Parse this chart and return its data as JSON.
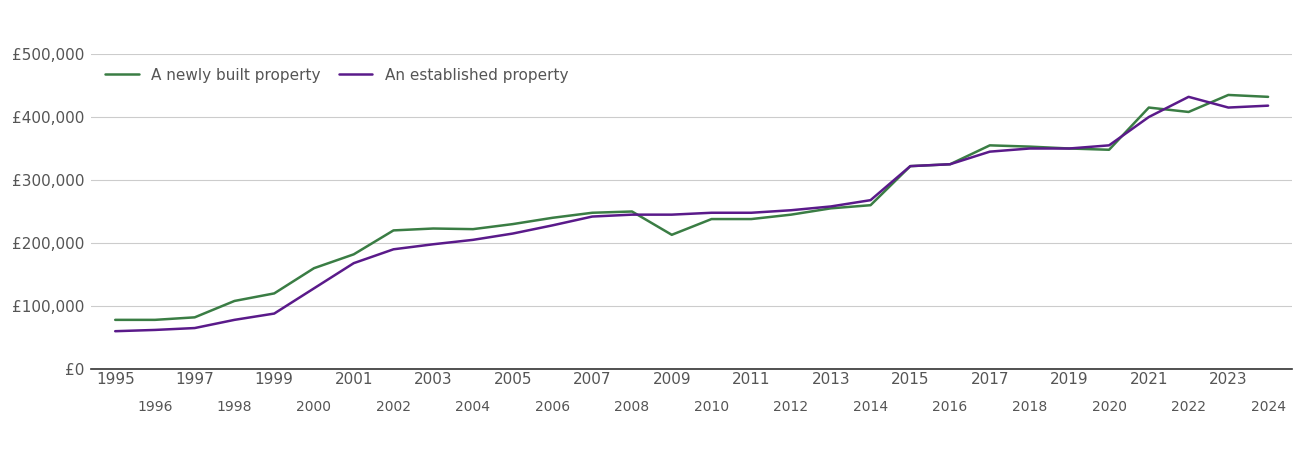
{
  "newly_built": {
    "years": [
      1995,
      1996,
      1997,
      1998,
      1999,
      2000,
      2001,
      2002,
      2003,
      2004,
      2005,
      2006,
      2007,
      2008,
      2009,
      2010,
      2011,
      2012,
      2013,
      2014,
      2015,
      2016,
      2017,
      2018,
      2019,
      2020,
      2021,
      2022,
      2023,
      2024
    ],
    "values": [
      78000,
      78000,
      82000,
      108000,
      120000,
      160000,
      182000,
      220000,
      223000,
      222000,
      230000,
      240000,
      248000,
      250000,
      213000,
      238000,
      238000,
      245000,
      255000,
      260000,
      322000,
      325000,
      355000,
      353000,
      350000,
      348000,
      415000,
      408000,
      435000,
      432000
    ]
  },
  "established": {
    "years": [
      1995,
      1996,
      1997,
      1998,
      1999,
      2000,
      2001,
      2002,
      2003,
      2004,
      2005,
      2006,
      2007,
      2008,
      2009,
      2010,
      2011,
      2012,
      2013,
      2014,
      2015,
      2016,
      2017,
      2018,
      2019,
      2020,
      2021,
      2022,
      2023,
      2024
    ],
    "values": [
      60000,
      62000,
      65000,
      78000,
      88000,
      128000,
      168000,
      190000,
      198000,
      205000,
      215000,
      228000,
      242000,
      245000,
      245000,
      248000,
      248000,
      252000,
      258000,
      268000,
      322000,
      325000,
      345000,
      350000,
      350000,
      355000,
      400000,
      432000,
      415000,
      418000
    ]
  },
  "newly_built_color": "#3a7d44",
  "established_color": "#5a1a8a",
  "background_color": "#ffffff",
  "legend_labels": [
    "A newly built property",
    "An established property"
  ],
  "ylim": [
    0,
    500000
  ],
  "yticks": [
    0,
    100000,
    200000,
    300000,
    400000,
    500000
  ],
  "ytick_labels": [
    "£0",
    "£100,000",
    "£200,000",
    "£300,000",
    "£400,000",
    "£500,000"
  ],
  "xtick_odd": [
    1995,
    1997,
    1999,
    2001,
    2003,
    2005,
    2007,
    2009,
    2011,
    2013,
    2015,
    2017,
    2019,
    2021,
    2023
  ],
  "xtick_even": [
    1996,
    1998,
    2000,
    2002,
    2004,
    2006,
    2008,
    2010,
    2012,
    2014,
    2016,
    2018,
    2020,
    2022,
    2024
  ],
  "line_width": 1.8,
  "grid_color": "#cccccc",
  "text_color": "#555555",
  "font_size": 11
}
